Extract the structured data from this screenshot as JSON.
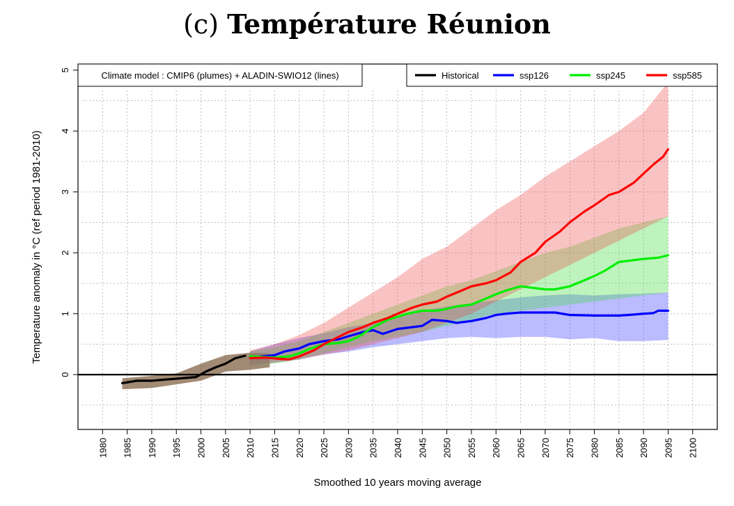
{
  "title": {
    "panel": "(c)",
    "text": "Température Réunion"
  },
  "chart_data": {
    "type": "area",
    "title": "(c) Température Réunion",
    "xlabel": "Smoothed 10 years moving average",
    "ylabel": "Temperature anomaly in °C (ref period 1981-2010)",
    "xlim": [
      1975,
      2105
    ],
    "ylim": [
      -0.9,
      5.1
    ],
    "x_ticks": [
      "1980",
      "1985",
      "1990",
      "1995",
      "2000",
      "2005",
      "2010",
      "2015",
      "2020",
      "2025",
      "2030",
      "2035",
      "2040",
      "2045",
      "2050",
      "2055",
      "2060",
      "2065",
      "2070",
      "2075",
      "2080",
      "2085",
      "2090",
      "2095",
      "2100"
    ],
    "y_ticks": [
      "0",
      "1",
      "2",
      "3",
      "4",
      "5"
    ],
    "grid": true,
    "reference_line": 0,
    "annotation": "Climate model : CMIP6 (plumes) + ALADIN-SWIO12 (lines)",
    "legend": {
      "position": "top-right",
      "entries": [
        {
          "name": "Historical",
          "color": "#000000"
        },
        {
          "name": "ssp126",
          "color": "#0000ff"
        },
        {
          "name": "ssp245",
          "color": "#00ee00"
        },
        {
          "name": "ssp585",
          "color": "#ff0000"
        }
      ]
    },
    "plumes": [
      {
        "name": "Historical",
        "color": "#7a5a3a",
        "opacity": 0.7,
        "x": [
          1984,
          1990,
          1995,
          2000,
          2005,
          2010,
          2014
        ],
        "lower": [
          -0.24,
          -0.22,
          -0.16,
          -0.1,
          0.05,
          0.08,
          0.12
        ],
        "upper": [
          -0.06,
          -0.02,
          0.02,
          0.18,
          0.32,
          0.36,
          0.35
        ]
      },
      {
        "name": "ssp126",
        "color": "#5555ff",
        "opacity": 0.4,
        "x": [
          2010,
          2015,
          2020,
          2025,
          2030,
          2035,
          2040,
          2045,
          2050,
          2055,
          2060,
          2065,
          2070,
          2075,
          2080,
          2085,
          2090,
          2095
        ],
        "lower": [
          0.15,
          0.2,
          0.25,
          0.33,
          0.38,
          0.45,
          0.5,
          0.55,
          0.6,
          0.62,
          0.6,
          0.62,
          0.62,
          0.58,
          0.6,
          0.55,
          0.55,
          0.57
        ],
        "upper": [
          0.38,
          0.5,
          0.6,
          0.68,
          0.78,
          0.85,
          0.95,
          1.05,
          1.12,
          1.17,
          1.22,
          1.27,
          1.3,
          1.32,
          1.3,
          1.32,
          1.33,
          1.35
        ]
      },
      {
        "name": "ssp245",
        "color": "#44dd44",
        "opacity": 0.35,
        "x": [
          2010,
          2015,
          2020,
          2025,
          2030,
          2035,
          2040,
          2045,
          2050,
          2055,
          2060,
          2065,
          2070,
          2075,
          2080,
          2085,
          2090,
          2095
        ],
        "lower": [
          0.15,
          0.18,
          0.25,
          0.35,
          0.45,
          0.55,
          0.62,
          0.7,
          0.8,
          0.9,
          1.0,
          1.05,
          1.1,
          1.15,
          1.2,
          1.25,
          1.3,
          1.35
        ],
        "upper": [
          0.38,
          0.45,
          0.55,
          0.7,
          0.85,
          1.0,
          1.15,
          1.3,
          1.45,
          1.55,
          1.7,
          1.85,
          2.0,
          2.1,
          2.25,
          2.4,
          2.5,
          2.6
        ]
      },
      {
        "name": "ssp585",
        "color": "#ee4444",
        "opacity": 0.32,
        "x": [
          2010,
          2015,
          2020,
          2025,
          2030,
          2035,
          2040,
          2045,
          2050,
          2055,
          2060,
          2065,
          2070,
          2075,
          2080,
          2085,
          2090,
          2095
        ],
        "lower": [
          0.15,
          0.2,
          0.25,
          0.33,
          0.4,
          0.5,
          0.6,
          0.7,
          0.85,
          1.0,
          1.2,
          1.4,
          1.6,
          1.8,
          2.0,
          2.2,
          2.4,
          2.6
        ],
        "upper": [
          0.4,
          0.5,
          0.65,
          0.85,
          1.1,
          1.35,
          1.6,
          1.9,
          2.1,
          2.4,
          2.7,
          2.95,
          3.25,
          3.5,
          3.75,
          4.0,
          4.3,
          4.8
        ]
      }
    ],
    "series": [
      {
        "name": "Historical",
        "color": "#000000",
        "x": [
          1984,
          1987,
          1990,
          1993,
          1996,
          1999,
          2001,
          2003,
          2005,
          2007,
          2009
        ],
        "y": [
          -0.14,
          -0.1,
          -0.1,
          -0.08,
          -0.06,
          -0.04,
          0.05,
          0.12,
          0.18,
          0.27,
          0.31
        ]
      },
      {
        "name": "ssp126",
        "color": "#0000ff",
        "x": [
          2010,
          2015,
          2017,
          2020,
          2022,
          2025,
          2028,
          2030,
          2033,
          2035,
          2037,
          2040,
          2045,
          2047,
          2050,
          2052,
          2055,
          2058,
          2060,
          2062,
          2065,
          2070,
          2072,
          2075,
          2080,
          2085,
          2087,
          2090,
          2092,
          2093,
          2095
        ],
        "y": [
          0.28,
          0.32,
          0.38,
          0.43,
          0.5,
          0.55,
          0.58,
          0.63,
          0.7,
          0.73,
          0.67,
          0.75,
          0.8,
          0.9,
          0.88,
          0.85,
          0.88,
          0.93,
          0.98,
          1.0,
          1.02,
          1.02,
          1.02,
          0.98,
          0.97,
          0.97,
          0.98,
          1.0,
          1.01,
          1.05,
          1.05
        ]
      },
      {
        "name": "ssp245",
        "color": "#00ee00",
        "x": [
          2010,
          2015,
          2018,
          2020,
          2022,
          2025,
          2028,
          2030,
          2032,
          2035,
          2038,
          2040,
          2042,
          2045,
          2048,
          2050,
          2052,
          2055,
          2058,
          2060,
          2062,
          2065,
          2068,
          2070,
          2072,
          2075,
          2078,
          2080,
          2082,
          2085,
          2088,
          2090,
          2093,
          2095
        ],
        "y": [
          0.3,
          0.28,
          0.3,
          0.35,
          0.42,
          0.5,
          0.52,
          0.55,
          0.62,
          0.78,
          0.9,
          0.95,
          1.0,
          1.05,
          1.05,
          1.08,
          1.12,
          1.15,
          1.25,
          1.32,
          1.38,
          1.45,
          1.42,
          1.4,
          1.4,
          1.45,
          1.55,
          1.62,
          1.7,
          1.85,
          1.88,
          1.9,
          1.92,
          1.96
        ]
      },
      {
        "name": "ssp585",
        "color": "#ff0000",
        "x": [
          2010,
          2013,
          2016,
          2018,
          2020,
          2023,
          2025,
          2028,
          2030,
          2033,
          2035,
          2038,
          2040,
          2043,
          2045,
          2048,
          2050,
          2053,
          2055,
          2058,
          2060,
          2063,
          2065,
          2068,
          2070,
          2073,
          2075,
          2078,
          2080,
          2083,
          2085,
          2088,
          2090,
          2092,
          2094,
          2095
        ],
        "y": [
          0.27,
          0.28,
          0.26,
          0.25,
          0.3,
          0.4,
          0.5,
          0.62,
          0.7,
          0.78,
          0.85,
          0.93,
          1.0,
          1.1,
          1.15,
          1.2,
          1.28,
          1.38,
          1.45,
          1.5,
          1.55,
          1.68,
          1.85,
          2.0,
          2.18,
          2.35,
          2.5,
          2.68,
          2.78,
          2.95,
          3.0,
          3.15,
          3.3,
          3.45,
          3.58,
          3.7
        ]
      }
    ]
  }
}
